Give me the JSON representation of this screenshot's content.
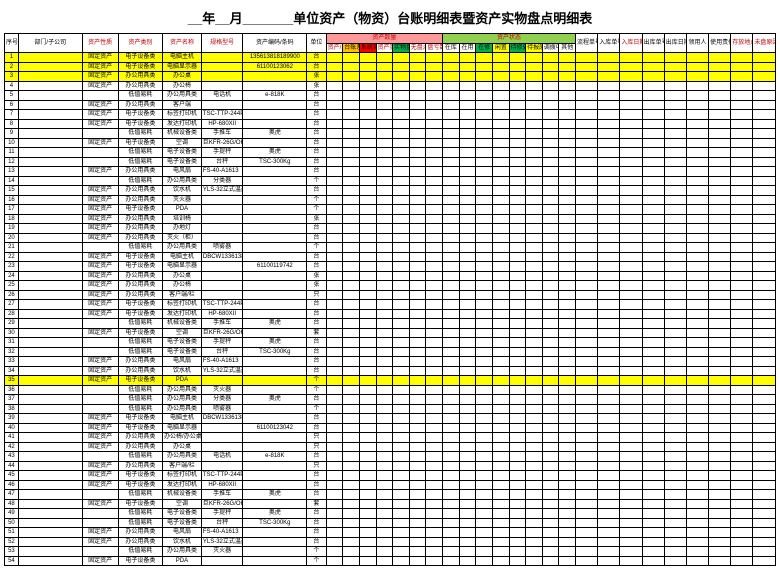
{
  "title": "__年__月_______单位资产（物资）台账明细表暨资产实物盘点明细表",
  "headers": {
    "main": [
      "序号",
      "部门/子公司",
      "资产性质",
      "资产类别",
      "资产名称",
      "规格型号",
      "资产编码/条码",
      "单位"
    ],
    "group_qty": "资产数量",
    "group_status": "资产状态",
    "qty_subs": [
      "资产/台账数量",
      "台账系统数量",
      "系统实物数量",
      "资产实物数量",
      "实物盘点数量",
      "无盘点差异数",
      "盘亏数"
    ],
    "status_subs": [
      "在库",
      "在用",
      "在修",
      "闲置",
      "待修处",
      "待报废",
      "调拨中",
      "其他"
    ],
    "tail": [
      "流程单号",
      "入库单号",
      "入库日期",
      "出库单号",
      "出库日期",
      "领用人",
      "使用责任",
      "存放地点",
      "未盘原因备注"
    ]
  },
  "highlight_rows": [
    1,
    2,
    3,
    35
  ],
  "colors": {
    "qty_sub_colors": [
      "",
      "orange",
      "red",
      "",
      "green",
      "",
      ""
    ],
    "status_sub_colors": [
      "",
      "",
      "green",
      "yellow",
      "green",
      "yellow",
      "",
      ""
    ]
  },
  "rows": [
    {
      "i": 1,
      "nat": "固定资产",
      "cat": "电子设备类",
      "name": "电脑主机",
      "model": "",
      "code": "135613818189900",
      "unit": "台"
    },
    {
      "i": 2,
      "nat": "固定资产",
      "cat": "电子设备类",
      "name": "电脑显示器",
      "model": "",
      "code": "61100123062",
      "unit": "台"
    },
    {
      "i": 3,
      "nat": "固定资产",
      "cat": "办公用具类",
      "name": "办公桌",
      "model": "",
      "code": "",
      "unit": "张"
    },
    {
      "i": 4,
      "nat": "固定资产",
      "cat": "办公用具类",
      "name": "办公椅",
      "model": "",
      "code": "",
      "unit": "张"
    },
    {
      "i": 5,
      "nat": "",
      "cat": "低值易耗",
      "name": "办公用具类",
      "model": "电话机",
      "code": "e-818K",
      "unit": "台"
    },
    {
      "i": 6,
      "nat": "固定资产",
      "cat": "办公用具类",
      "name": "客户端",
      "model": "",
      "code": "",
      "unit": "台"
    },
    {
      "i": 7,
      "nat": "固定资产",
      "cat": "电子设备类",
      "name": "标签打印机",
      "model": "TSC-TTP-244Pro",
      "code": "",
      "unit": "台"
    },
    {
      "i": 8,
      "nat": "固定资产",
      "cat": "电子设备类",
      "name": "发达打印机",
      "model": "HP-680XII",
      "code": "",
      "unit": "台"
    },
    {
      "i": 9,
      "nat": "",
      "cat": "低值易耗",
      "name": "机械设备类",
      "model": "手推车",
      "code": "奥虎",
      "unit": "台"
    },
    {
      "i": 10,
      "nat": "固定资产",
      "cat": "电子设备类",
      "name": "空调",
      "model": "巨KFR-26G/OHICW(1匹)",
      "code": "",
      "unit": "台"
    },
    {
      "i": 11,
      "nat": "",
      "cat": "低值易耗",
      "name": "电子设备类",
      "model": "手提秤",
      "code": "奥虎",
      "unit": "台"
    },
    {
      "i": 12,
      "nat": "",
      "cat": "低值易耗",
      "name": "电子设备类",
      "model": "台秤",
      "code": "TSC-300Kg",
      "unit": "台"
    },
    {
      "i": 13,
      "nat": "固定资产",
      "cat": "办公用具类",
      "name": "电风扇",
      "model": "FS-40-A1613（落地扇）",
      "code": "",
      "unit": "台"
    },
    {
      "i": 14,
      "nat": "",
      "cat": "低值易耗",
      "name": "办公用具类",
      "model": "分类器",
      "code": "",
      "unit": "个"
    },
    {
      "i": 15,
      "nat": "固定资产",
      "cat": "办公用具类",
      "name": "饮水机",
      "model": "YLS-32立式温热饮水机",
      "code": "",
      "unit": "台"
    },
    {
      "i": 16,
      "nat": "固定资产",
      "cat": "办公用具类",
      "name": "灭火器",
      "model": "",
      "code": "",
      "unit": "个"
    },
    {
      "i": 17,
      "nat": "固定资产",
      "cat": "电子设备类",
      "name": "PDA",
      "model": "",
      "code": "",
      "unit": "个"
    },
    {
      "i": 18,
      "nat": "固定资产",
      "cat": "办公用具类",
      "name": "培训椅",
      "model": "",
      "code": "",
      "unit": "张"
    },
    {
      "i": 19,
      "nat": "固定资产",
      "cat": "办公用具类",
      "name": "办地灯",
      "model": "",
      "code": "",
      "unit": "台"
    },
    {
      "i": 20,
      "nat": "固定资产",
      "cat": "办公用具类",
      "name": "灭火（柜）",
      "model": "",
      "code": "",
      "unit": "台"
    },
    {
      "i": 21,
      "nat": "",
      "cat": "低值易耗",
      "name": "办公用具类",
      "model": "喷雾器",
      "code": "",
      "unit": "个"
    },
    {
      "i": 22,
      "nat": "固定资产",
      "cat": "电子设备类",
      "name": "电脑主机",
      "model": "DBCW133613818279200",
      "code": "",
      "unit": "台"
    },
    {
      "i": 23,
      "nat": "固定资产",
      "cat": "电子设备类",
      "name": "电脑显示器",
      "model": "",
      "code": "61100119742",
      "unit": "台"
    },
    {
      "i": 24,
      "nat": "固定资产",
      "cat": "办公用具类",
      "name": "办公桌",
      "model": "",
      "code": "",
      "unit": "张"
    },
    {
      "i": 25,
      "nat": "固定资产",
      "cat": "办公用具类",
      "name": "办公椅",
      "model": "",
      "code": "",
      "unit": "张"
    },
    {
      "i": 26,
      "nat": "固定资产",
      "cat": "办公用具类",
      "name": "客户端/栏",
      "model": "",
      "code": "",
      "unit": "只"
    },
    {
      "i": 27,
      "nat": "固定资产",
      "cat": "电子设备类",
      "name": "标签打印机",
      "model": "TSC-TTP-244Pro",
      "code": "",
      "unit": "台"
    },
    {
      "i": 28,
      "nat": "固定资产",
      "cat": "电子设备类",
      "name": "发达打印机",
      "model": "HP-680XII",
      "code": "",
      "unit": "台"
    },
    {
      "i": 29,
      "nat": "",
      "cat": "低值易耗",
      "name": "机械设备类",
      "model": "手推车",
      "code": "奥虎",
      "unit": "台"
    },
    {
      "i": 30,
      "nat": "固定资产",
      "cat": "电子设备类",
      "name": "空调",
      "model": "巨KFR-26G/OHICW(1匹)",
      "code": "",
      "unit": "套"
    },
    {
      "i": 31,
      "nat": "",
      "cat": "低值易耗",
      "name": "电子设备类",
      "model": "手提秤",
      "code": "奥虎",
      "unit": "台"
    },
    {
      "i": 32,
      "nat": "",
      "cat": "低值易耗",
      "name": "电子设备类",
      "model": "台秤",
      "code": "TSC-300Kg",
      "unit": "台"
    },
    {
      "i": 33,
      "nat": "固定资产",
      "cat": "办公用具类",
      "name": "电风扇",
      "model": "FS-40-A1613（落地扇）",
      "code": "",
      "unit": "台"
    },
    {
      "i": 34,
      "nat": "固定资产",
      "cat": "办公用具类",
      "name": "饮水机",
      "model": "YLS-32立式温热饮水机",
      "code": "",
      "unit": "台"
    },
    {
      "i": 35,
      "nat": "固定资产",
      "cat": "电子设备类",
      "name": "PDA",
      "model": "",
      "code": "",
      "unit": "个"
    },
    {
      "i": 36,
      "nat": "",
      "cat": "低值易耗",
      "name": "办公用具类",
      "model": "灭火器",
      "code": "",
      "unit": "个"
    },
    {
      "i": 37,
      "nat": "",
      "cat": "低值易耗",
      "name": "办公用具类",
      "model": "分类器",
      "code": "奥虎",
      "unit": "台"
    },
    {
      "i": 38,
      "nat": "",
      "cat": "低值易耗",
      "name": "办公用具类",
      "model": "喷雾器",
      "code": "",
      "unit": "个"
    },
    {
      "i": 39,
      "nat": "固定资产",
      "cat": "电子设备类",
      "name": "电脑主机",
      "model": "DBCW133613818189800",
      "code": "",
      "unit": "台"
    },
    {
      "i": 40,
      "nat": "固定资产",
      "cat": "电子设备类",
      "name": "电脑显示器",
      "model": "",
      "code": "61100123042",
      "unit": "台"
    },
    {
      "i": 41,
      "nat": "固定资产",
      "cat": "办公用具类",
      "name": "办公椅/办公桌",
      "model": "",
      "code": "",
      "unit": "只"
    },
    {
      "i": 42,
      "nat": "固定资产",
      "cat": "办公用具类",
      "name": "办公桌",
      "model": "",
      "code": "",
      "unit": "只"
    },
    {
      "i": 43,
      "nat": "",
      "cat": "低值易耗",
      "name": "办公用具类",
      "model": "电话机",
      "code": "e-818K",
      "unit": "台"
    },
    {
      "i": 44,
      "nat": "固定资产",
      "cat": "办公用具类",
      "name": "客户端/栏",
      "model": "",
      "code": "",
      "unit": "只"
    },
    {
      "i": 45,
      "nat": "固定资产",
      "cat": "电子设备类",
      "name": "标签打印机",
      "model": "TSC-TTP-244Pro",
      "code": "",
      "unit": "台"
    },
    {
      "i": 46,
      "nat": "固定资产",
      "cat": "电子设备类",
      "name": "发达打印机",
      "model": "HP-680XII",
      "code": "",
      "unit": "台"
    },
    {
      "i": 47,
      "nat": "",
      "cat": "低值易耗",
      "name": "机械设备类",
      "model": "手推车",
      "code": "奥虎",
      "unit": "台"
    },
    {
      "i": 48,
      "nat": "固定资产",
      "cat": "电子设备类",
      "name": "空调",
      "model": "巨KFR-26G/OHICW(1匹)",
      "code": "",
      "unit": "套"
    },
    {
      "i": 49,
      "nat": "",
      "cat": "低值易耗",
      "name": "电子设备类",
      "model": "手提秤",
      "code": "奥虎",
      "unit": "台"
    },
    {
      "i": 50,
      "nat": "",
      "cat": "低值易耗",
      "name": "电子设备类",
      "model": "台秤",
      "code": "TSC-300Kg",
      "unit": "台"
    },
    {
      "i": 51,
      "nat": "固定资产",
      "cat": "办公用具类",
      "name": "电风扇",
      "model": "FS-40-A1613（落地扇）",
      "code": "",
      "unit": "台"
    },
    {
      "i": 52,
      "nat": "固定资产",
      "cat": "办公用具类",
      "name": "饮水机",
      "model": "YLS-32立式温热饮水机",
      "code": "",
      "unit": "台"
    },
    {
      "i": 53,
      "nat": "",
      "cat": "低值易耗",
      "name": "办公用具类",
      "model": "灭火器",
      "code": "",
      "unit": "个"
    },
    {
      "i": 54,
      "nat": "固定资产",
      "cat": "电子设备类",
      "name": "PDA",
      "model": "",
      "code": "",
      "unit": "个"
    }
  ]
}
